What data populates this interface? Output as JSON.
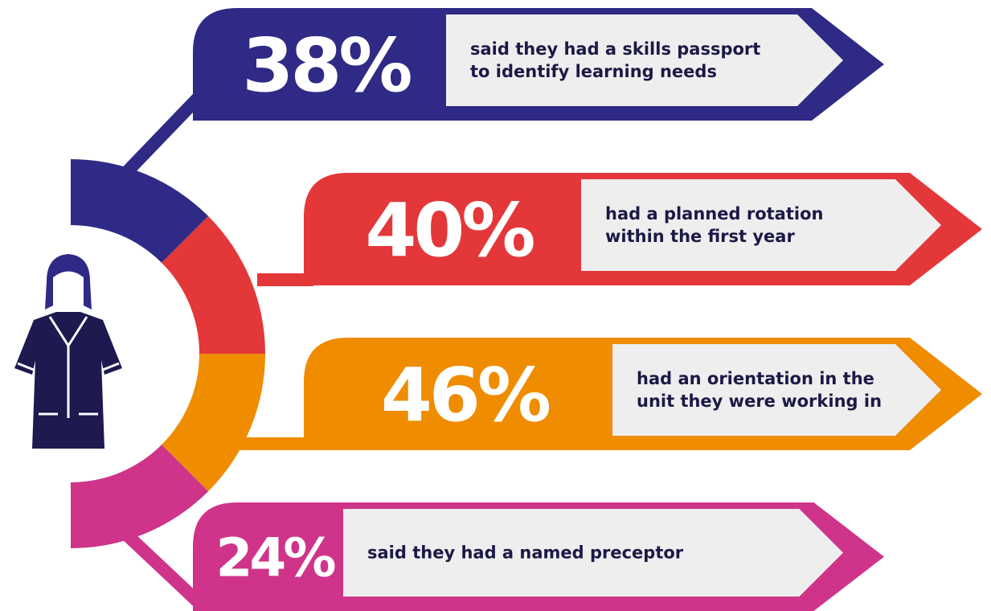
{
  "items": [
    {
      "percent": "38%",
      "text": [
        "said they had a skills passport",
        "to identify learning needs"
      ],
      "color": "#2f2a85"
    },
    {
      "percent": "40%",
      "text": [
        "had a planned rotation",
        "within the first year"
      ],
      "color": "#e4373a"
    },
    {
      "percent": "46%",
      "text": [
        "had an orientation in the",
        "unit they were working in"
      ],
      "color": "#ef8c00"
    },
    {
      "percent": "24%",
      "text": [
        "said they had a named preceptor"
      ],
      "color": "#cf348a"
    }
  ]
}
